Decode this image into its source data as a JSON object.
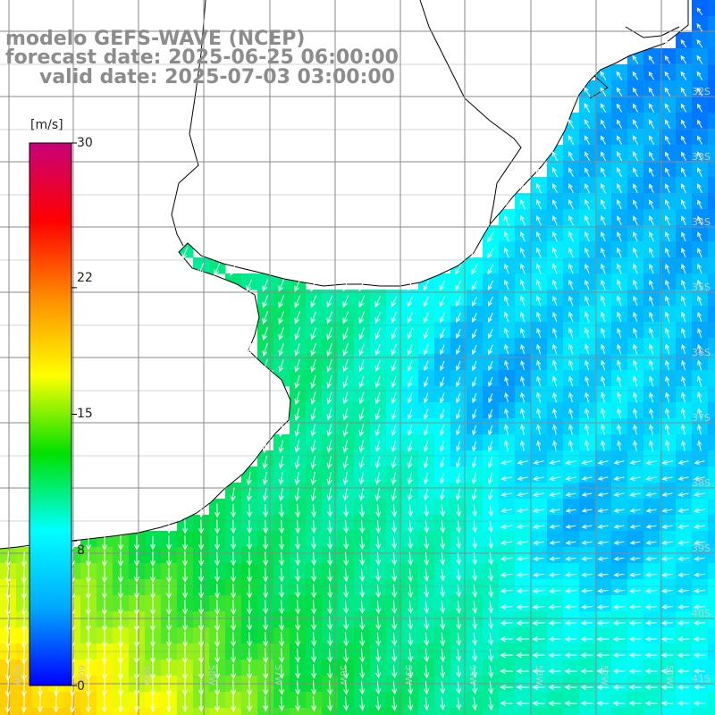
{
  "title": {
    "model": "modelo GEFS-WAVE (NCEP)",
    "forecast": "forecast date: 2025-06-25 06:00:00",
    "valid": "valid date: 2025-07-03 03:00:00"
  },
  "colorbar": {
    "unit": "[m/s]",
    "ticks": [
      "30",
      "22",
      "15",
      "8",
      "0"
    ],
    "tick_values": [
      30,
      22,
      15,
      8,
      0
    ],
    "range": [
      0,
      30
    ],
    "colors": [
      "#0000ff",
      "#00a8ff",
      "#00ffff",
      "#00e000",
      "#ffff00",
      "#ff8c00",
      "#ff0000",
      "#c80078"
    ]
  },
  "map": {
    "lon_labels": [
      "61W",
      "60W",
      "59W",
      "58W",
      "57W",
      "56W",
      "55W",
      "54W",
      "53W",
      "52W",
      "51W"
    ],
    "lat_labels": [
      "32S",
      "33S",
      "34S",
      "35S",
      "36S",
      "37S",
      "38S",
      "39S",
      "40S",
      "41S"
    ],
    "land_color": "#ffffff",
    "coast_color": "#000000",
    "grid_color": "#8a8a8a",
    "vector_color": "#ffffff"
  }
}
